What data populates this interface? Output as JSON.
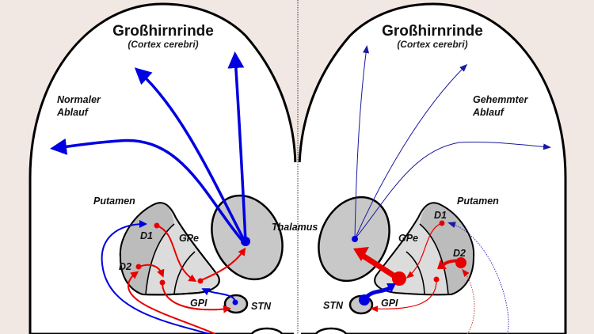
{
  "left": {
    "title": "Großhirnrinde",
    "subtitle": "(Cortex cerebri)",
    "mode_line1": "Normaler",
    "mode_line2": "Ablauf",
    "putamen": "Putamen",
    "d1": "D1",
    "d2": "D2",
    "gpe": "GPe",
    "gpi": "GPI",
    "stn": "STN",
    "thalamus": "Thalamus"
  },
  "right": {
    "title": "Großhirnrinde",
    "subtitle": "(Cortex cerebri)",
    "mode_line1": "Gehemmter",
    "mode_line2": "Ablauf",
    "putamen": "Putamen",
    "d1": "D1",
    "d2": "D2",
    "gpe": "GPe",
    "gpi": "GPI",
    "stn": "STN"
  },
  "colors": {
    "excitatory": "#0000e0",
    "inhibitory": "#e80000",
    "background": "#f1e7e3",
    "nucleus_fill": "#c8c8c8"
  }
}
